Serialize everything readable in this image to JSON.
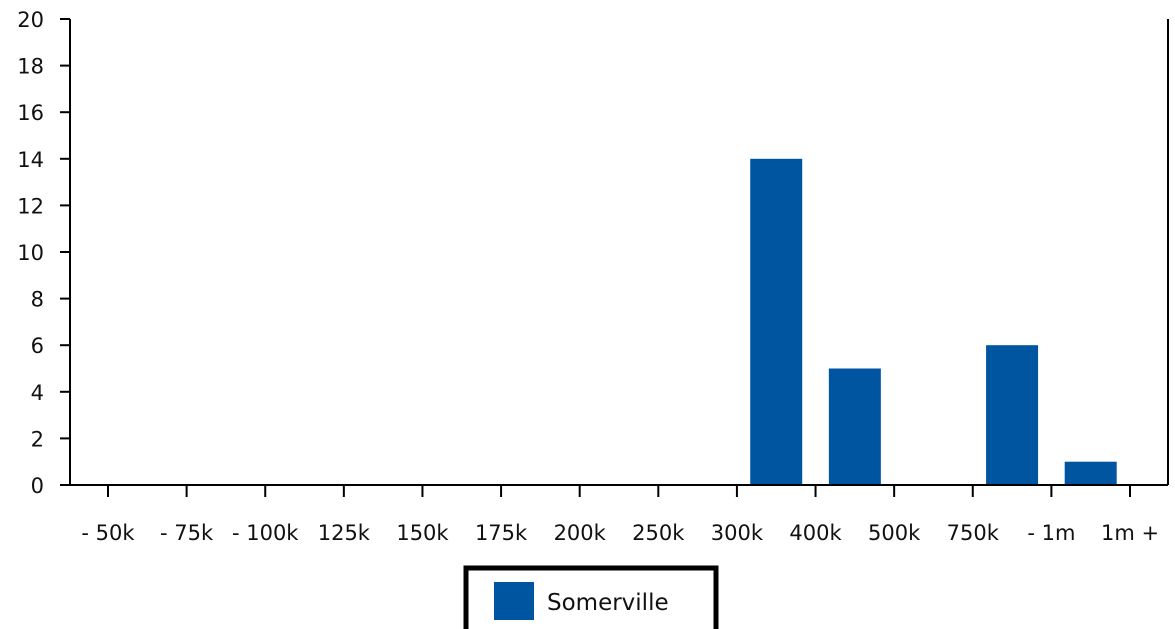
{
  "chart_data": {
    "type": "bar",
    "categories": [
      "- 50k",
      "- 75k",
      "- 100k",
      "125k",
      "150k",
      "175k",
      "200k",
      "250k",
      "300k",
      "400k",
      "500k",
      "750k",
      "- 1m",
      "1m +"
    ],
    "series": [
      {
        "name": "Somerville",
        "values": [
          0,
          0,
          0,
          0,
          0,
          0,
          0,
          0,
          14,
          5,
          0,
          6,
          1,
          0
        ],
        "color": "#0055a0"
      }
    ],
    "ylim": [
      0,
      20
    ],
    "yticks": [
      0,
      2,
      4,
      6,
      8,
      10,
      12,
      14,
      16,
      18,
      20
    ],
    "grid": false,
    "legend_position": "bottom"
  },
  "legend": {
    "items": [
      {
        "label": "Somerville",
        "color": "#0055a0"
      }
    ]
  }
}
